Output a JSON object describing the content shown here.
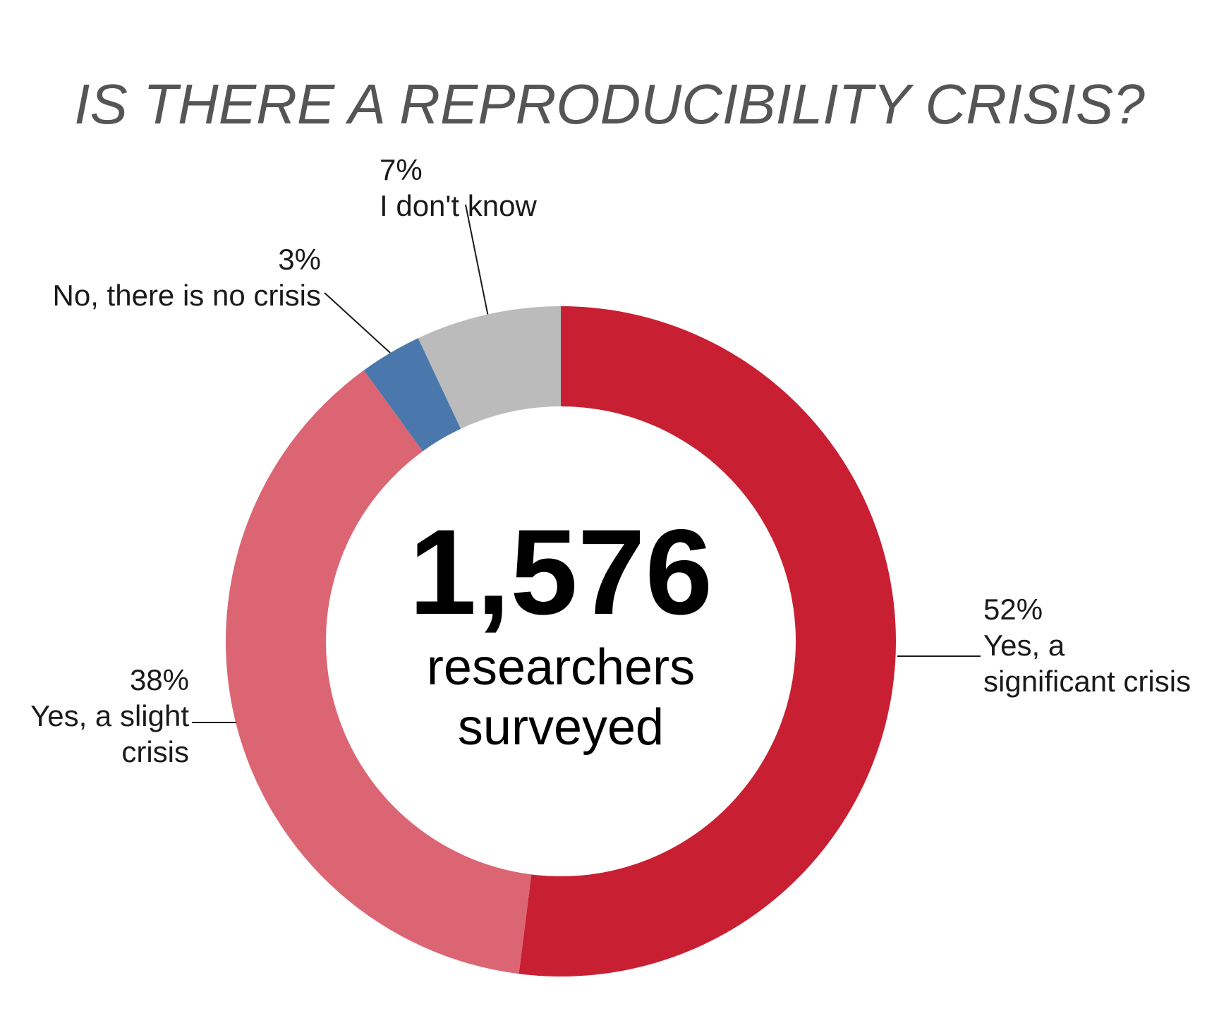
{
  "chart_data": {
    "type": "pie",
    "variant": "donut",
    "title": "IS THERE A REPRODUCIBILITY CRISIS?",
    "center": {
      "number": "1,576",
      "line1": "researchers",
      "line2": "surveyed"
    },
    "slices": [
      {
        "label_lines": [
          "Yes, a",
          "significant crisis"
        ],
        "value": 52,
        "pct_label": "52%",
        "color": "#c82032"
      },
      {
        "label_lines": [
          "Yes, a slight",
          "crisis"
        ],
        "value": 38,
        "pct_label": "38%",
        "color": "#dc6574"
      },
      {
        "label_lines": [
          "No, there is no crisis"
        ],
        "value": 3,
        "pct_label": "3%",
        "color": "#4b78ac"
      },
      {
        "label_lines": [
          "I don't know"
        ],
        "value": 7,
        "pct_label": "7%",
        "color": "#bbbbbb"
      }
    ]
  }
}
